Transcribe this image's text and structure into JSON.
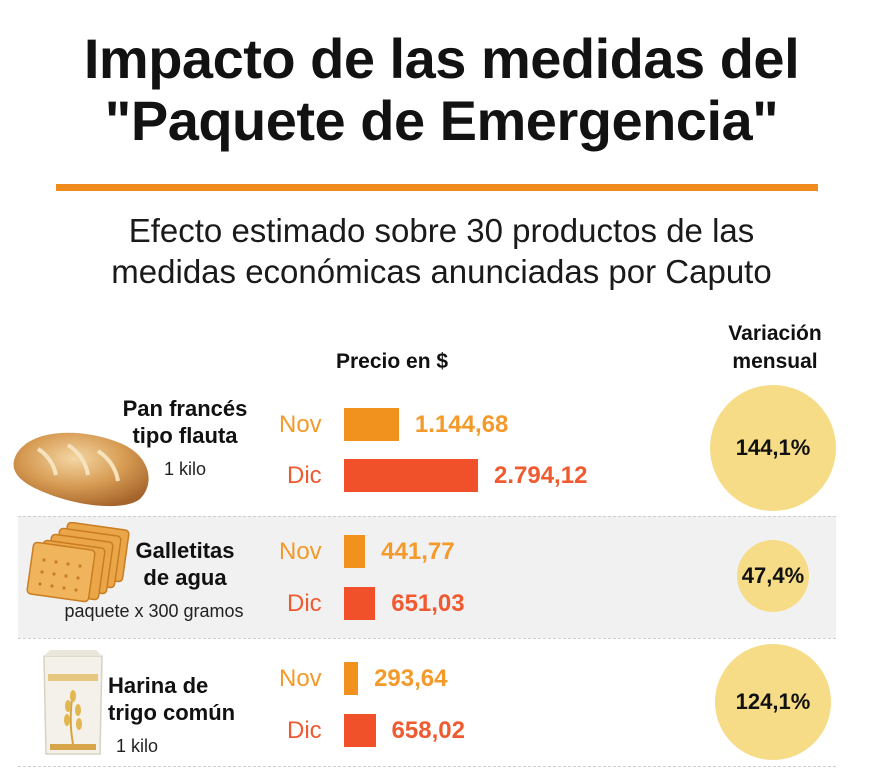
{
  "title_line1": "Impacto de las medidas del",
  "title_line2": "\"Paquete de Emergencia\"",
  "subtitle_line1": "Efecto estimado sobre 30 productos de las",
  "subtitle_line2": "medidas económicas anunciadas por Caputo",
  "header_price": "Precio en $",
  "header_var_line1": "Variación",
  "header_var_line2": "mensual",
  "colors": {
    "nov": "#f2921e",
    "dic": "#f0502a",
    "bubble": "#f6dc86",
    "rule": "#f08c1e"
  },
  "chart_data": {
    "type": "bar",
    "orientation": "horizontal",
    "series_labels": [
      "Nov",
      "Dic"
    ],
    "products": [
      {
        "name_line1": "Pan francés",
        "name_line2": "tipo flauta",
        "unit": "1 kilo",
        "icon": "bread-icon",
        "nov_label": "Nov",
        "dic_label": "Dic",
        "nov": 1144.68,
        "dic": 2794.12,
        "nov_text": "1.144,68",
        "dic_text": "2.794,12",
        "variation": 144.1,
        "variation_text": "144,1%"
      },
      {
        "name_line1": "Galletitas",
        "name_line2": "de agua",
        "unit": "paquete x 300 gramos",
        "icon": "crackers-icon",
        "nov_label": "Nov",
        "dic_label": "Dic",
        "nov": 441.77,
        "dic": 651.03,
        "nov_text": "441,77",
        "dic_text": "651,03",
        "variation": 47.4,
        "variation_text": "47,4%"
      },
      {
        "name_line1": "Harina de",
        "name_line2": "trigo común",
        "unit": "1 kilo",
        "icon": "flour-bag-icon",
        "nov_label": "Nov",
        "dic_label": "Dic",
        "nov": 293.64,
        "dic": 658.02,
        "nov_text": "293,64",
        "dic_text": "658,02",
        "variation": 124.1,
        "variation_text": "124,1%"
      }
    ]
  }
}
